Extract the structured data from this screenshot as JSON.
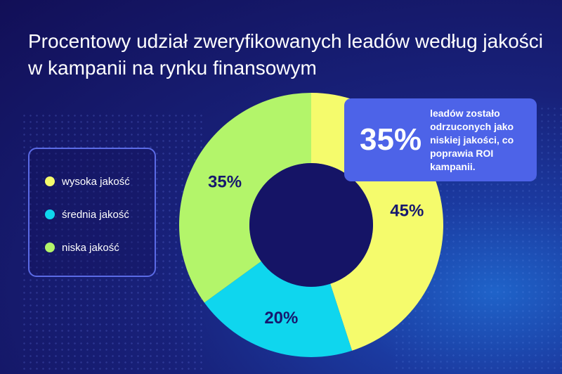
{
  "header": {
    "title": "Procentowy udział zweryfikowanych leadów według jakości w kampanii na rynku finansowym"
  },
  "callout": {
    "value": "35%",
    "text": "leadów zostało odrzuconych jako niskiej jakości, co poprawia ROI kampanii."
  },
  "colors": {
    "background": "#17186e",
    "accent": "#4d63e8",
    "label_text": "#17186e"
  },
  "chart_data": {
    "type": "pie",
    "title": "Procentowy udział zweryfikowanych leadów według jakości w kampanii na rynku finansowym",
    "donut": true,
    "legend_position": "left",
    "categories": [
      "wysoka jakość",
      "średnia jakość",
      "niska jakość"
    ],
    "values": [
      45,
      20,
      35
    ],
    "labels": [
      "45%",
      "20%",
      "35%"
    ],
    "colors": [
      "#f5fb6c",
      "#0fd6ee",
      "#b3f56a"
    ]
  }
}
